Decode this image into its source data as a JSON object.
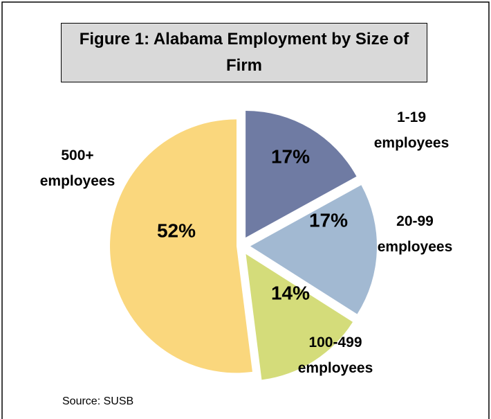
{
  "chart_data": {
    "type": "pie",
    "title": "Figure 1: Alabama Employment by Size of Firm",
    "categories": [
      "1-19 employees",
      "20-99 employees",
      "100-499 employees",
      "500+ employees"
    ],
    "values": [
      17,
      17,
      14,
      52
    ],
    "value_labels": [
      "17%",
      "17%",
      "14%",
      "52%"
    ],
    "colors": [
      "#6f7ba3",
      "#a2b9d2",
      "#d4dc7a",
      "#fad77d"
    ],
    "note": "Source: SUSB"
  }
}
